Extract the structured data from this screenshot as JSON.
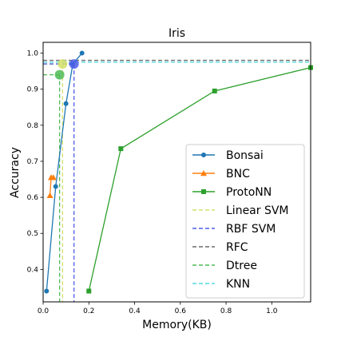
{
  "chart_data": {
    "type": "line",
    "title": "Iris",
    "xlabel": "Memory(KB)",
    "ylabel": "Accuracy",
    "xlim": [
      0,
      1.17
    ],
    "ylim": [
      0.31,
      1.03
    ],
    "xticks": [
      0.0,
      0.2,
      0.4,
      0.6,
      0.8,
      1.0
    ],
    "xtick_labels": [
      "0.0",
      "0.2",
      "0.4",
      "0.6",
      "0.8",
      "1.0"
    ],
    "yticks": [
      0.4,
      0.5,
      0.6,
      0.7,
      0.8,
      0.9,
      1.0
    ],
    "ytick_labels": [
      "0.4",
      "0.5",
      "0.6",
      "0.7",
      "0.8",
      "0.9",
      "1.0"
    ],
    "grid": false,
    "legend_position": "lower-right",
    "series": [
      {
        "name": "Bonsai",
        "color": "#1f77b4",
        "marker": "circle",
        "linestyle": "solid",
        "x": [
          0.015,
          0.055,
          0.1,
          0.13,
          0.17
        ],
        "y": [
          0.34,
          0.63,
          0.86,
          0.97,
          1.0
        ]
      },
      {
        "name": "BNC",
        "color": "#ff7f0e",
        "marker": "triangle",
        "linestyle": "solid",
        "x": [
          0.03,
          0.035,
          0.045
        ],
        "y": [
          0.605,
          0.655,
          0.655
        ]
      },
      {
        "name": "ProtoNN",
        "color": "#2ca02c",
        "marker": "square",
        "linestyle": "solid",
        "x": [
          0.2,
          0.34,
          0.75,
          1.17
        ],
        "y": [
          0.34,
          0.735,
          0.895,
          0.96
        ]
      },
      {
        "name": "Linear SVM",
        "color": "#d4e06a",
        "marker": "point",
        "linestyle": "dashed",
        "x": [
          0.085
        ],
        "y": [
          0.97
        ]
      },
      {
        "name": "RBF SVM",
        "color": "#4f5ee8",
        "marker": "point",
        "linestyle": "dashed",
        "x": [
          0.135
        ],
        "y": [
          0.97
        ]
      },
      {
        "name": "RFC",
        "color": "#6b6b6b",
        "marker": "point",
        "linestyle": "dashed",
        "x": [
          0.13
        ],
        "y": [
          0.98
        ]
      },
      {
        "name": "Dtree",
        "color": "#4dbb55",
        "marker": "point",
        "linestyle": "dashed",
        "x": [
          0.072
        ],
        "y": [
          0.94
        ]
      },
      {
        "name": "KNN",
        "color": "#55d8e0",
        "marker": "point",
        "linestyle": "dashed",
        "x": [
          1.17
        ],
        "y": [
          0.975
        ]
      }
    ]
  }
}
